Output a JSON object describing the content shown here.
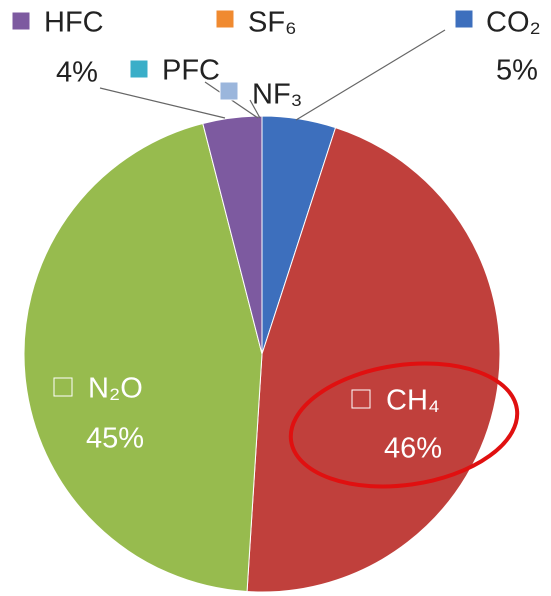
{
  "chart_data": {
    "type": "pie",
    "categories": [
      "CO₂",
      "CH₄",
      "N₂O",
      "HFC",
      "PFC",
      "SF₆",
      "NF₃"
    ],
    "values": [
      5,
      46,
      45,
      4,
      0,
      0,
      0
    ],
    "value_labels": [
      "5%",
      "46%",
      "45%",
      "4%",
      null,
      null,
      null
    ],
    "colors": [
      "#3d6fbd",
      "#c0403c",
      "#97bb4e",
      "#7d5aa0",
      "#3aaec8",
      "#f08a30",
      "#9bb6dc"
    ],
    "start_angle": 90,
    "direction": "clockwise"
  }
}
